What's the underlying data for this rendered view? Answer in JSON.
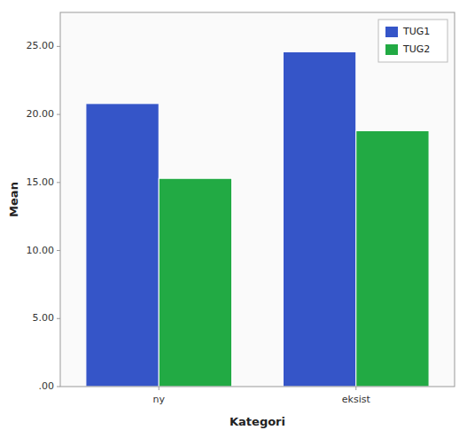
{
  "chart_data": {
    "type": "bar",
    "xlabel": "Kategori",
    "ylabel": "Mean",
    "categories": [
      "ny",
      "eksist"
    ],
    "series": [
      {
        "name": "TUG1",
        "color": "#3555C8",
        "values": [
          20.8,
          24.6
        ]
      },
      {
        "name": "TUG2",
        "color": "#22AA44",
        "values": [
          15.3,
          18.8
        ]
      }
    ],
    "ylim": [
      0,
      27.5
    ],
    "yticks": [
      {
        "value": 0.0,
        "label": ".00"
      },
      {
        "value": 5.0,
        "label": "5.00"
      },
      {
        "value": 10.0,
        "label": "10.00"
      },
      {
        "value": 15.0,
        "label": "15.00"
      },
      {
        "value": 20.0,
        "label": "20.00"
      },
      {
        "value": 25.0,
        "label": "25.00"
      }
    ],
    "grid": false,
    "legend": "upper right"
  }
}
